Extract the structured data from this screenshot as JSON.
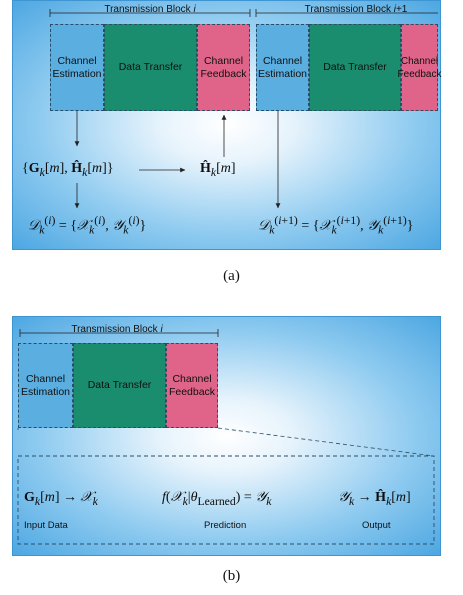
{
  "panel_a": {
    "block1_label": "Transmission Block i",
    "block2_label": "Transmission Block i+1",
    "channel_estimation": "Channel Estimation",
    "data_transfer": "Data Transfer",
    "channel_feedback": "Channel Feedback",
    "estimates_expr": "{G_k[m], Ĥ_k[m]}",
    "feedback_expr": "Ĥ_k[m]",
    "dataset_i_expr": "D_k^(i) = {X_k^(i), Y_k^(i)}",
    "dataset_i1_expr": "D_k^(i+1) = {X_k^(i+1), Y_k^(i+1)}",
    "caption": "(a)"
  },
  "panel_b": {
    "block_label": "Transmission Block i",
    "channel_estimation": "Channel Estimation",
    "data_transfer": "Data Transfer",
    "channel_feedback": "Channel Feedback",
    "input_expr": "G_k[m] → X_k",
    "prediction_expr": "f(X_k | θ_Learned) = Y_k",
    "output_expr": "Y_k → Ĥ_k[m]",
    "input_label": "Input Data",
    "prediction_label": "Prediction",
    "output_label": "Output",
    "caption": "(b)"
  },
  "colors": {
    "channel_estimation": "#5aaee0",
    "data_transfer": "#1b8d6f",
    "channel_feedback": "#e0648a",
    "panel_edge": "#4da7e2"
  }
}
